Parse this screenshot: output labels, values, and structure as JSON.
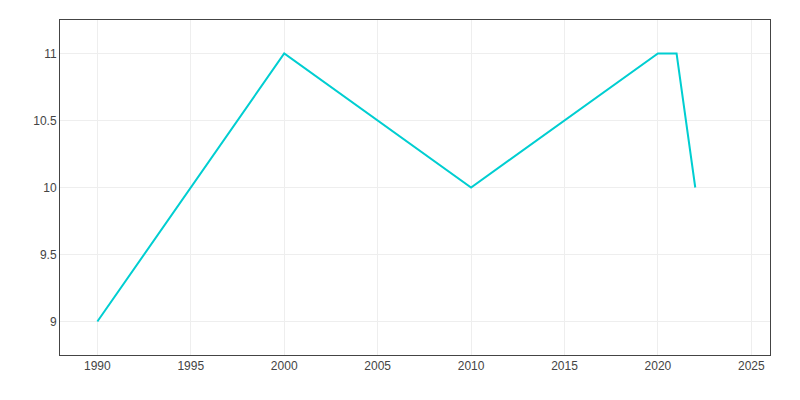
{
  "chart_data": {
    "type": "line",
    "x": [
      1990,
      2000,
      2010,
      2020,
      2021,
      2022
    ],
    "values": [
      9,
      11,
      10,
      11,
      11,
      10
    ],
    "color": "#00CED1",
    "xlim": [
      1988,
      2026
    ],
    "ylim": [
      8.75,
      11.25
    ],
    "xticks": [
      1990,
      1995,
      2000,
      2005,
      2010,
      2015,
      2020,
      2025
    ],
    "yticks": [
      9,
      9.5,
      10,
      10.5,
      11
    ],
    "grid": true
  }
}
